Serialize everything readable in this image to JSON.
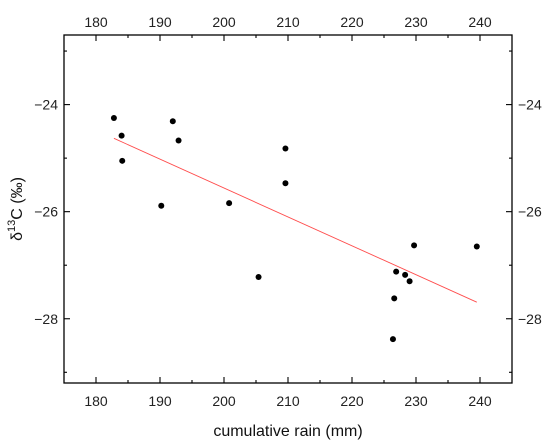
{
  "chart_data": {
    "type": "scatter",
    "xlabel": "cumulative rain (mm)",
    "ylabel_base": "δ",
    "ylabel_sup": "13",
    "ylabel_rest": "C (‰)",
    "xlim": [
      175,
      245
    ],
    "ylim": [
      -29.2,
      -22.7
    ],
    "x_ticks": [
      180,
      190,
      200,
      210,
      220,
      230,
      240
    ],
    "x_tick_labels": [
      "180",
      "190",
      "200",
      "210",
      "220",
      "230",
      "240"
    ],
    "y_ticks": [
      -24,
      -26,
      -28
    ],
    "y_tick_labels": [
      "−24",
      "−26",
      "−28"
    ],
    "grid": false,
    "legend": "none",
    "points": [
      {
        "x": 182.8,
        "y": -24.25
      },
      {
        "x": 184.0,
        "y": -24.58
      },
      {
        "x": 184.1,
        "y": -25.05
      },
      {
        "x": 190.2,
        "y": -25.89
      },
      {
        "x": 192.0,
        "y": -24.31
      },
      {
        "x": 192.9,
        "y": -24.67
      },
      {
        "x": 200.8,
        "y": -25.84
      },
      {
        "x": 205.4,
        "y": -27.22
      },
      {
        "x": 209.6,
        "y": -24.82
      },
      {
        "x": 209.6,
        "y": -25.47
      },
      {
        "x": 226.4,
        "y": -28.38
      },
      {
        "x": 226.6,
        "y": -27.62
      },
      {
        "x": 226.9,
        "y": -27.12
      },
      {
        "x": 228.3,
        "y": -27.18
      },
      {
        "x": 229.0,
        "y": -27.3
      },
      {
        "x": 229.7,
        "y": -26.63
      },
      {
        "x": 239.5,
        "y": -26.65
      }
    ],
    "fit_line": {
      "x": [
        182.8,
        239.5
      ],
      "y": [
        -24.63,
        -27.69
      ]
    },
    "colors": {
      "points": "#000000",
      "fit_line": "#ff4d4d",
      "axes": "#000000"
    }
  }
}
